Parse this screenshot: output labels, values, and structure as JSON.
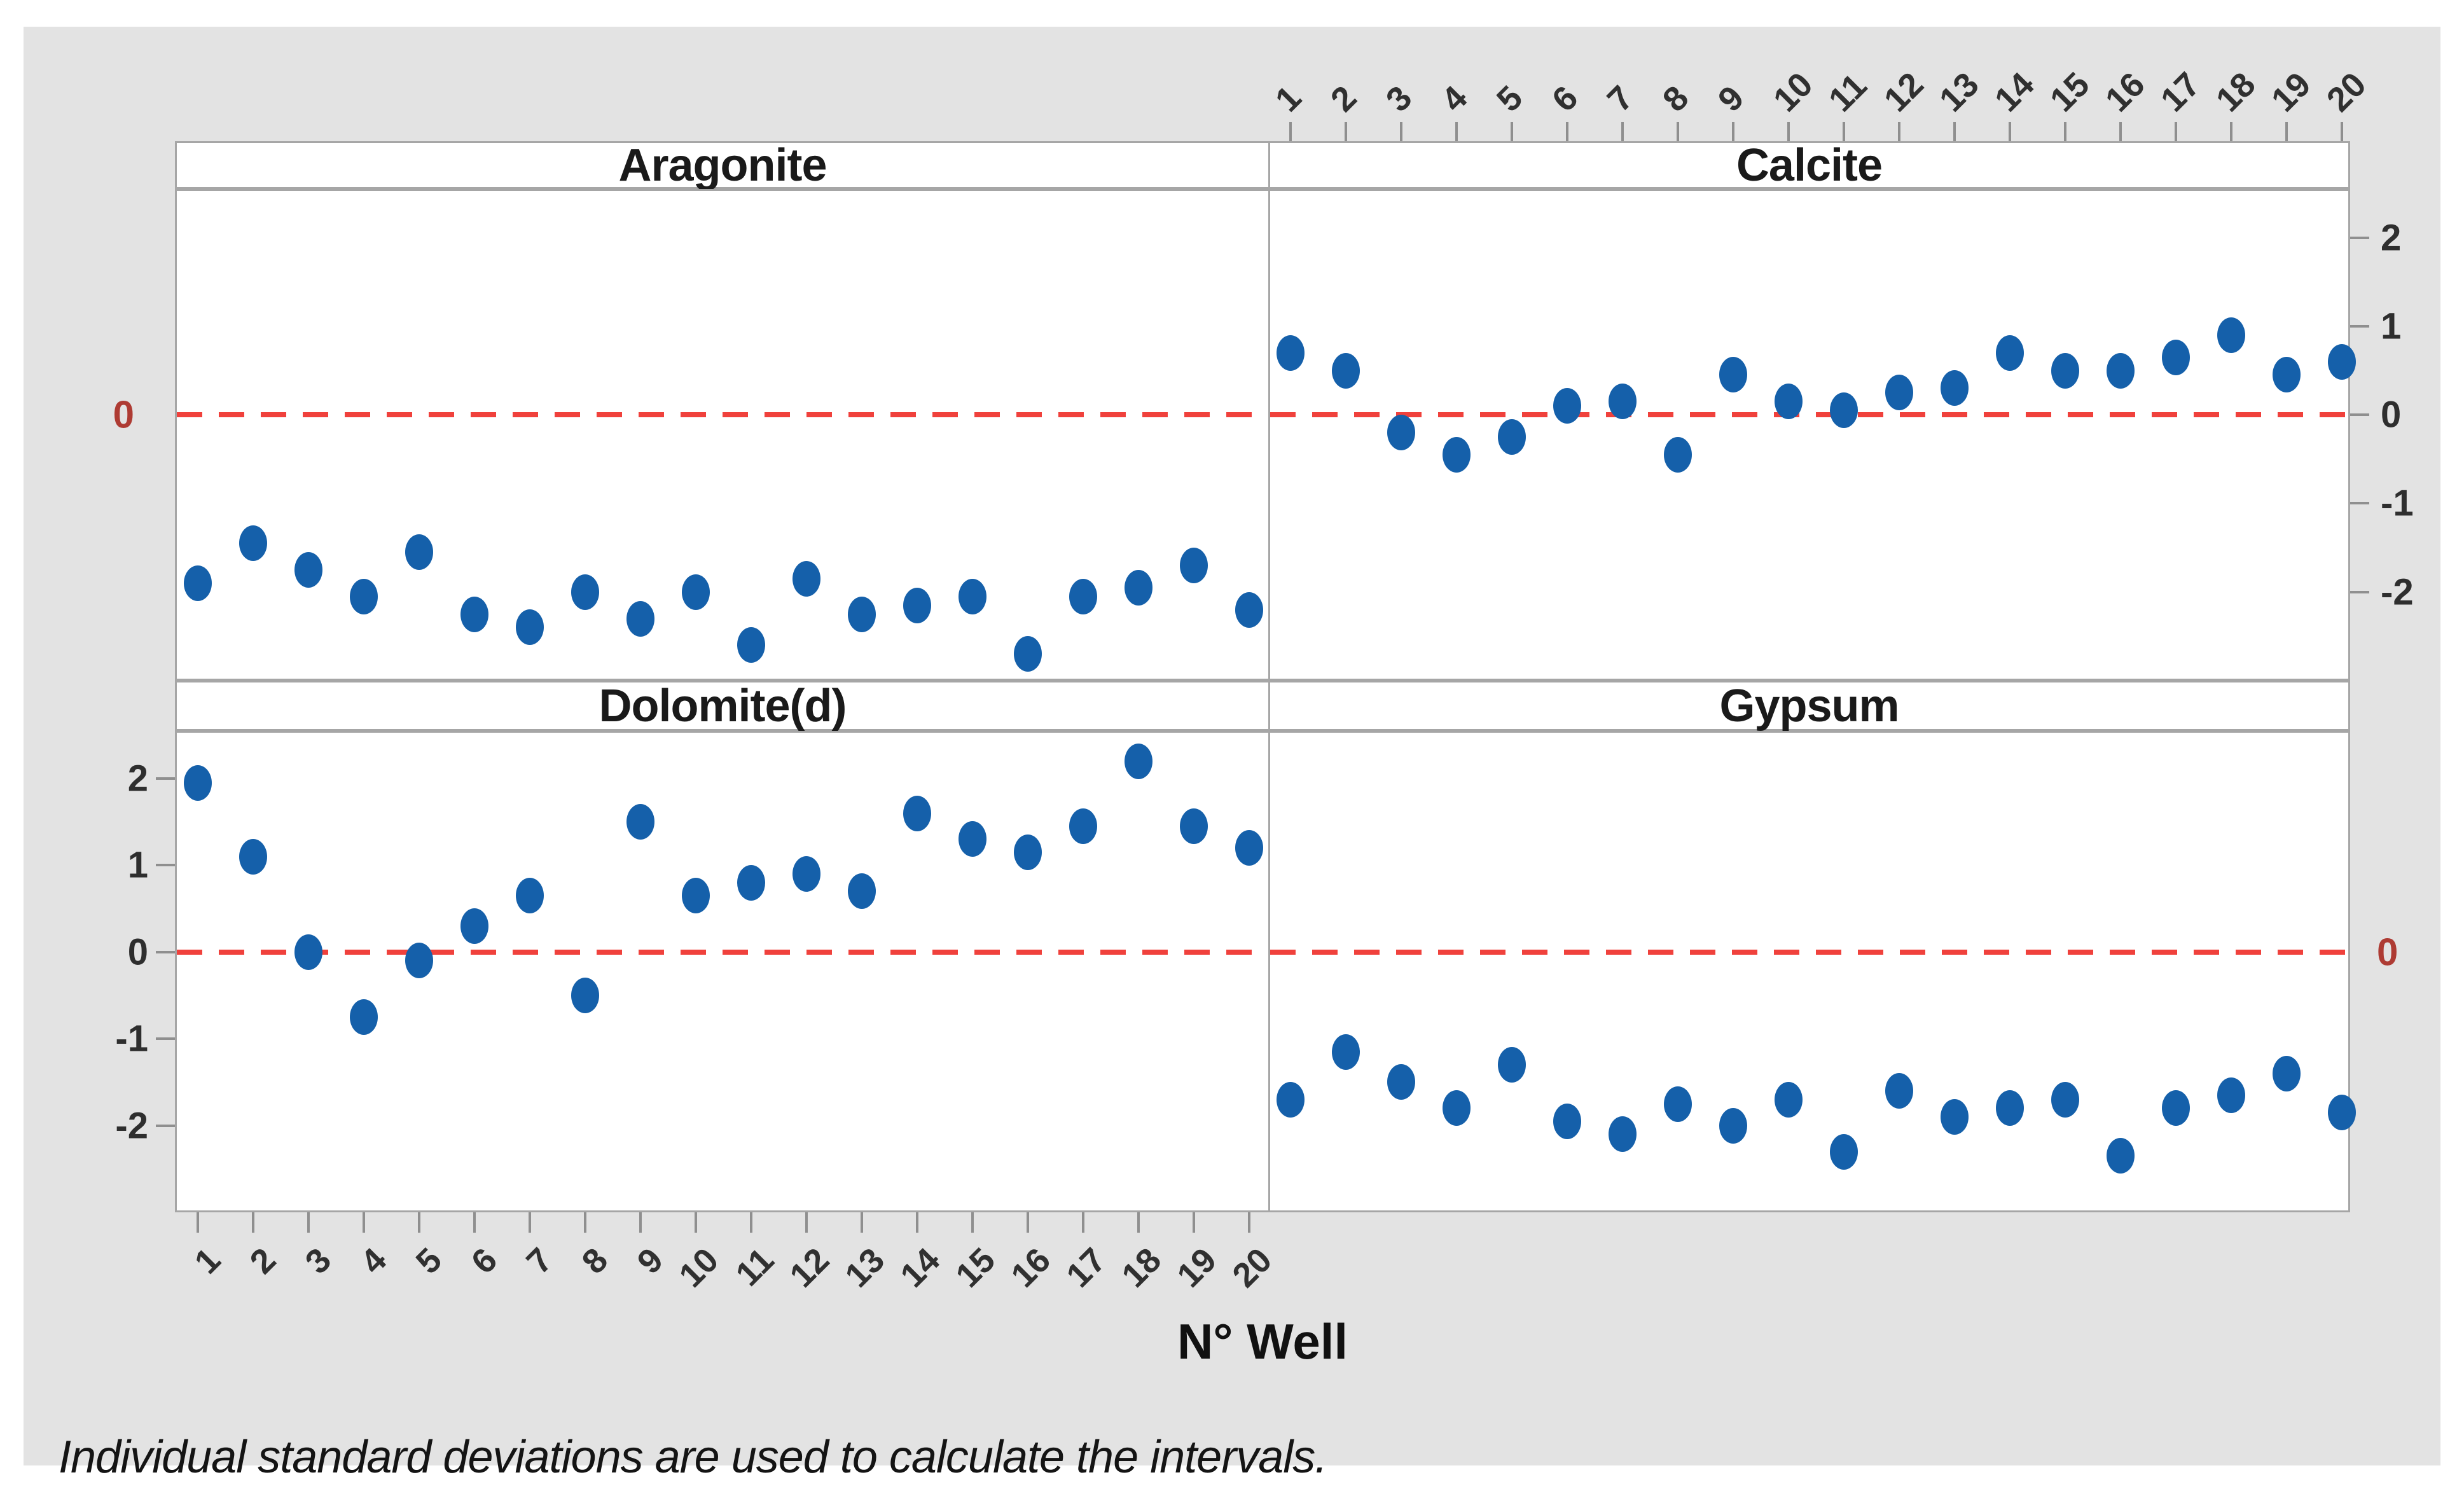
{
  "figure": {
    "x_axis_label": "N° Well",
    "footnote": "Individual standard deviations are used to calculate the intervals.",
    "reference_line_label": "0",
    "colors": {
      "background": "#e3e3e3",
      "panel_fill": "#ffffff",
      "panel_border": "#a6a6a6",
      "point": "#1560aa",
      "reference_line": "#f0413c",
      "reference_label": "#ae3b33",
      "axis_text": "#303030"
    }
  },
  "chart_data": {
    "type": "scatter",
    "layout": "2x2-paneled individual value plot, shared axes, dashed reference line at 0",
    "title": "",
    "xlabel": "N° Well",
    "ylabel": "",
    "x": [
      1,
      2,
      3,
      4,
      5,
      6,
      7,
      8,
      9,
      10,
      11,
      12,
      13,
      14,
      15,
      16,
      17,
      18,
      19,
      20
    ],
    "x_tick_labels": [
      "1",
      "2",
      "3",
      "4",
      "5",
      "6",
      "7",
      "8",
      "9",
      "10",
      "11",
      "12",
      "13",
      "14",
      "15",
      "16",
      "17",
      "18",
      "19",
      "20"
    ],
    "y_ticks": [
      2,
      1,
      0,
      -1,
      -2
    ],
    "y_tick_labels": [
      "2",
      "1",
      "0",
      "-1",
      "-2"
    ],
    "ylim": [
      -3.0,
      2.55
    ],
    "reference_line": 0,
    "grid": false,
    "legend": "none",
    "panels": [
      {
        "title": "Aragonite",
        "row": 0,
        "col": 0,
        "values": [
          -1.9,
          -1.45,
          -1.75,
          -2.05,
          -1.55,
          -2.25,
          -2.4,
          -2.0,
          -2.3,
          -2.0,
          -2.6,
          -1.85,
          -2.25,
          -2.15,
          -2.05,
          -2.7,
          -2.05,
          -1.95,
          -1.7,
          -2.2
        ]
      },
      {
        "title": "Calcite",
        "row": 0,
        "col": 1,
        "values": [
          0.7,
          0.5,
          -0.2,
          -0.45,
          -0.25,
          0.1,
          0.15,
          -0.45,
          0.45,
          0.15,
          0.05,
          0.25,
          0.3,
          0.7,
          0.5,
          0.5,
          0.65,
          0.9,
          0.45,
          0.6
        ]
      },
      {
        "title": "Dolomite(d)",
        "row": 1,
        "col": 0,
        "values": [
          1.95,
          1.1,
          0.0,
          -0.75,
          -0.1,
          0.3,
          0.65,
          -0.5,
          1.5,
          0.65,
          0.8,
          0.9,
          0.7,
          1.6,
          1.3,
          1.15,
          1.45,
          2.2,
          1.45,
          1.2
        ]
      },
      {
        "title": "Gypsum",
        "row": 1,
        "col": 1,
        "values": [
          -1.7,
          -1.15,
          -1.5,
          -1.8,
          -1.3,
          -1.95,
          -2.1,
          -1.75,
          -2.0,
          -1.7,
          -2.3,
          -1.6,
          -1.9,
          -1.8,
          -1.7,
          -2.35,
          -1.8,
          -1.65,
          -1.4,
          -1.85
        ]
      }
    ],
    "footnote": "Individual standard deviations are used to calculate the intervals."
  }
}
